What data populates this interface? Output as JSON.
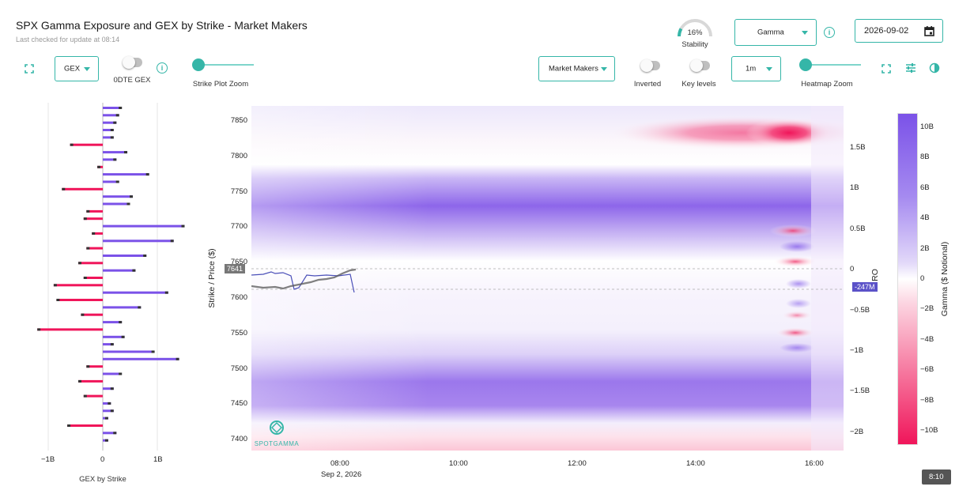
{
  "header": {
    "title": "SPX Gamma Exposure and GEX by Strike - Market Makers",
    "subtitle": "Last checked for update at 08:14"
  },
  "stability": {
    "label": "Stability",
    "value_text": "16%",
    "value": 0.16
  },
  "controls": {
    "metric_select": "Gamma",
    "date": "2026-09-02",
    "gex_select": "GEX",
    "dte_toggle_label": "0DTE GEX",
    "strike_zoom_label": "Strike Plot Zoom",
    "participant_select": "Market Makers",
    "inverted_label": "Inverted",
    "key_levels_label": "Key levels",
    "interval_select": "1m",
    "heatmap_zoom_label": "Heatmap Zoom"
  },
  "colors": {
    "accent": "#35b6a8",
    "positive": "#7b52e8",
    "negative": "#f0155a",
    "price_line": "#4a4fb8"
  },
  "bar_chart": {
    "xlabel": "GEX by Strike",
    "xticks": [
      "−1B",
      "0",
      "1B"
    ]
  },
  "heatmap": {
    "ylabel": "Strike / Price ($)",
    "yticks": [
      "7850",
      "7800",
      "7750",
      "7700",
      "7650",
      "7600",
      "7550",
      "7500",
      "7450",
      "7400"
    ],
    "xticks": [
      "08:00",
      "10:00",
      "12:00",
      "14:00",
      "16:00"
    ],
    "date_label": "Sep 2, 2026",
    "price_badge": "7641",
    "right_axis_label": "RO",
    "right_ticks": [
      "1.5B",
      "1B",
      "0.5B",
      "0",
      "−0.5B",
      "−1B",
      "−1.5B",
      "−2B"
    ],
    "value_badge": "-247M",
    "logo_text": "SPOTGAMMA",
    "colorbar_label": "Gamma ($ Notional)",
    "colorbar_ticks": [
      "10B",
      "8B",
      "6B",
      "4B",
      "2B",
      "0",
      "−2B",
      "−4B",
      "−6B",
      "−8B",
      "−10B"
    ]
  },
  "chart_data": {
    "type": "bar",
    "title": "",
    "xlabel": "GEX by Strike",
    "ylabel": "",
    "xlim": [
      -1.3,
      1.5
    ],
    "categories": [
      "7850",
      "7840",
      "7830",
      "7820",
      "7810",
      "7800",
      "7790",
      "7780",
      "7770",
      "7760",
      "7750",
      "7740",
      "7730",
      "7720",
      "7710",
      "7700",
      "7690",
      "7680",
      "7670",
      "7660",
      "7650",
      "7640",
      "7630",
      "7620",
      "7610",
      "7600",
      "7590",
      "7580",
      "7570",
      "7560",
      "7550",
      "7540",
      "7530",
      "7520",
      "7510",
      "7500",
      "7490",
      "7480",
      "7470",
      "7460",
      "7450",
      "7440",
      "7430",
      "7420",
      "7410",
      "7400"
    ],
    "values": [
      0.35,
      0.3,
      0.25,
      0.2,
      0.2,
      -0.6,
      0.45,
      0.25,
      -0.1,
      0.85,
      0.3,
      -0.75,
      0.55,
      0.5,
      -0.3,
      -0.35,
      1.5,
      -0.2,
      1.3,
      -0.3,
      0.8,
      -0.45,
      0.6,
      -0.35,
      -0.9,
      1.2,
      -0.85,
      0.7,
      -0.4,
      0.35,
      -1.2,
      0.4,
      0.2,
      0.95,
      1.4,
      -0.3,
      0.35,
      -0.45,
      0.2,
      -0.35,
      0.15,
      0.2,
      0.1,
      -0.65,
      0.25,
      0.1
    ],
    "series_name": ""
  }
}
